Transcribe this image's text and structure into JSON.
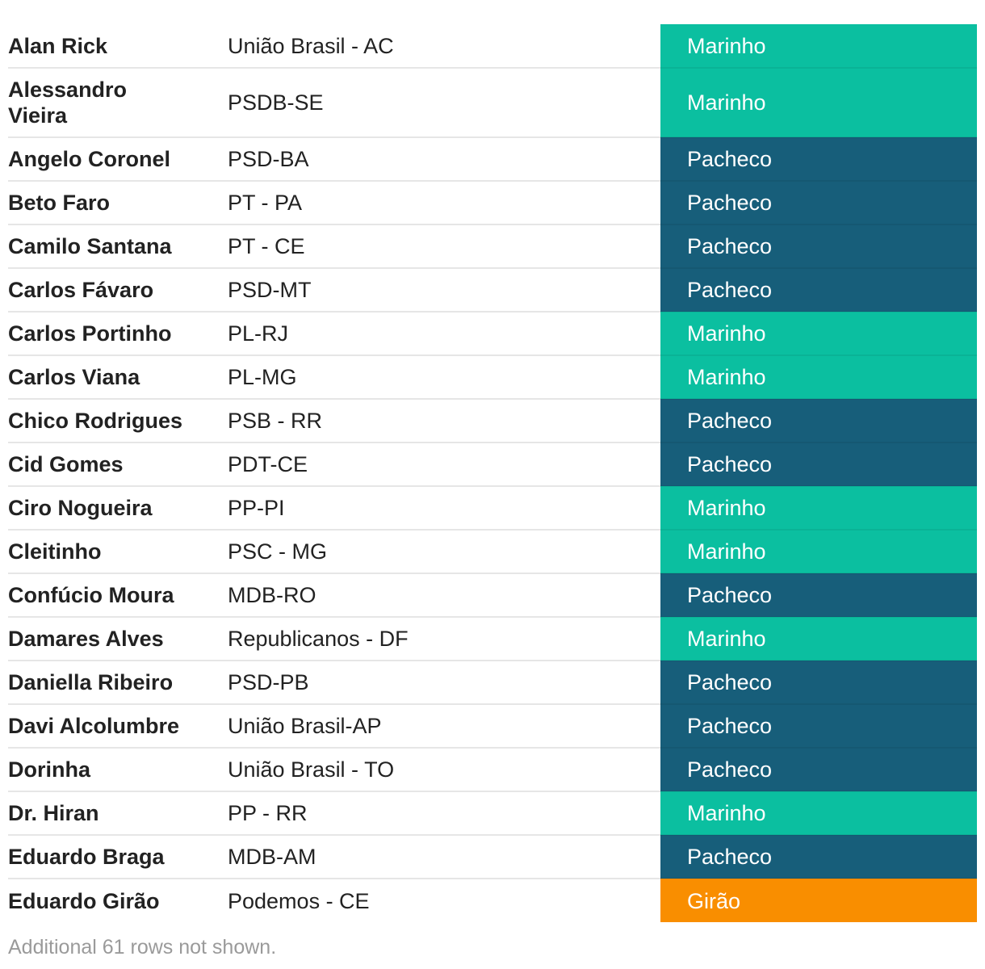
{
  "table": {
    "rows": [
      {
        "name": "Alan Rick",
        "party": "União Brasil - AC",
        "vote": "Marinho",
        "color": "#0bbfa0"
      },
      {
        "name": "Alessandro Vieira",
        "party": "PSDB-SE",
        "vote": "Marinho",
        "color": "#0bbfa0"
      },
      {
        "name": "Angelo Coronel",
        "party": "PSD-BA",
        "vote": "Pacheco",
        "color": "#175e7a"
      },
      {
        "name": "Beto Faro",
        "party": "PT - PA",
        "vote": "Pacheco",
        "color": "#175e7a"
      },
      {
        "name": "Camilo Santana",
        "party": "PT - CE",
        "vote": "Pacheco",
        "color": "#175e7a"
      },
      {
        "name": "Carlos Fávaro",
        "party": "PSD-MT",
        "vote": "Pacheco",
        "color": "#175e7a"
      },
      {
        "name": "Carlos Portinho",
        "party": "PL-RJ",
        "vote": "Marinho",
        "color": "#0bbfa0"
      },
      {
        "name": "Carlos Viana",
        "party": "PL-MG",
        "vote": "Marinho",
        "color": "#0bbfa0"
      },
      {
        "name": "Chico Rodrigues",
        "party": "PSB - RR",
        "vote": "Pacheco",
        "color": "#175e7a"
      },
      {
        "name": "Cid Gomes",
        "party": "PDT-CE",
        "vote": "Pacheco",
        "color": "#175e7a"
      },
      {
        "name": "Ciro Nogueira",
        "party": "PP-PI",
        "vote": "Marinho",
        "color": "#0bbfa0"
      },
      {
        "name": "Cleitinho",
        "party": "PSC - MG",
        "vote": "Marinho",
        "color": "#0bbfa0"
      },
      {
        "name": "Confúcio Moura",
        "party": "MDB-RO",
        "vote": "Pacheco",
        "color": "#175e7a"
      },
      {
        "name": "Damares Alves",
        "party": "Republicanos - DF",
        "vote": "Marinho",
        "color": "#0bbfa0"
      },
      {
        "name": "Daniella Ribeiro",
        "party": "PSD-PB",
        "vote": "Pacheco",
        "color": "#175e7a"
      },
      {
        "name": "Davi Alcolumbre",
        "party": "União Brasil-AP",
        "vote": "Pacheco",
        "color": "#175e7a"
      },
      {
        "name": "Dorinha",
        "party": "União Brasil - TO",
        "vote": "Pacheco",
        "color": "#175e7a"
      },
      {
        "name": "Dr. Hiran",
        "party": "PP - RR",
        "vote": "Marinho",
        "color": "#0bbfa0"
      },
      {
        "name": "Eduardo Braga",
        "party": "MDB-AM",
        "vote": "Pacheco",
        "color": "#175e7a"
      },
      {
        "name": "Eduardo Girão",
        "party": "Podemos - CE",
        "vote": "Girão",
        "color": "#f98e00"
      }
    ]
  },
  "footer": "Additional 61 rows not shown."
}
